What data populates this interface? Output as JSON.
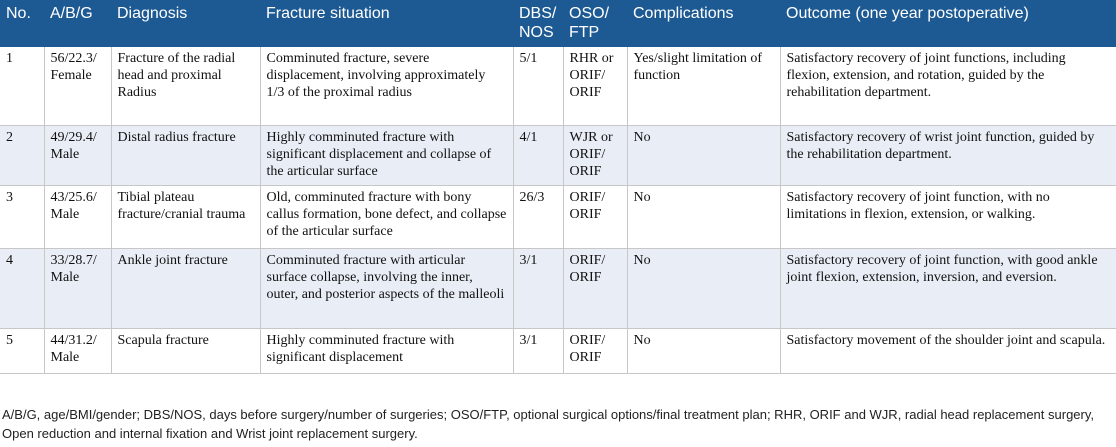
{
  "table": {
    "headers": [
      "No.",
      "A/B/G",
      "Diagnosis",
      "Fracture situation",
      "DBS/ NOS",
      "OSO/ FTP",
      "Complications",
      "Outcome (one year postoperative)"
    ],
    "rows": [
      {
        "no": "1",
        "abg": "56/22.3/ Female",
        "diagnosis": "Fracture of the radial head and proximal Radius",
        "fracture": "Comminuted fracture, severe displacement, involving approximately 1/3 of the proximal radius",
        "dbs_nos": "5/1",
        "oso_ftp": "RHR or ORIF/ ORIF",
        "complications": "Yes/slight limitation of function",
        "outcome": "Satisfactory recovery of joint functions, including flexion, extension, and rotation, guided by the rehabilitation department."
      },
      {
        "no": "2",
        "abg": "49/29.4/ Male",
        "diagnosis": "Distal radius fracture",
        "fracture": "Highly comminuted fracture with significant displacement and collapse of the articular surface",
        "dbs_nos": "4/1",
        "oso_ftp": "WJR or ORIF/ ORIF",
        "complications": "No",
        "outcome": "Satisfactory recovery of wrist joint function, guided by the rehabilitation department."
      },
      {
        "no": "3",
        "abg": "43/25.6/ Male",
        "diagnosis": "Tibial plateau fracture/cranial trauma",
        "fracture": "Old, comminuted fracture with bony callus formation, bone defect, and collapse of the articular surface",
        "dbs_nos": "26/3",
        "oso_ftp": "ORIF/ ORIF",
        "complications": "No",
        "outcome": "Satisfactory recovery of joint function, with no limitations in flexion, extension, or walking."
      },
      {
        "no": "4",
        "abg": "33/28.7/ Male",
        "diagnosis": "Ankle joint fracture",
        "fracture": "Comminuted fracture with articular surface collapse, involving the inner, outer, and posterior aspects of the malleoli",
        "dbs_nos": "3/1",
        "oso_ftp": "ORIF/ ORIF",
        "complications": "No",
        "outcome": "Satisfactory recovery of joint function, with good ankle joint flexion, extension, inversion, and eversion."
      },
      {
        "no": "5",
        "abg": "44/31.2/ Male",
        "diagnosis": "Scapula fracture",
        "fracture": "Highly comminuted fracture with significant displacement",
        "dbs_nos": "3/1",
        "oso_ftp": "ORIF/ ORIF",
        "complications": "No",
        "outcome": "Satisfactory movement of the shoulder joint and scapula."
      }
    ]
  },
  "footnote": "A/B/G, age/BMI/gender; DBS/NOS, days before surgery/number of surgeries; OSO/FTP, optional surgical options/final treatment plan; RHR, ORIF and WJR, radial head replacement surgery, Open reduction and internal fixation and Wrist joint replacement surgery.",
  "colors": {
    "header_bg": "#1d5a93",
    "header_text": "#ffffff",
    "stripe": "#e9eef6"
  }
}
